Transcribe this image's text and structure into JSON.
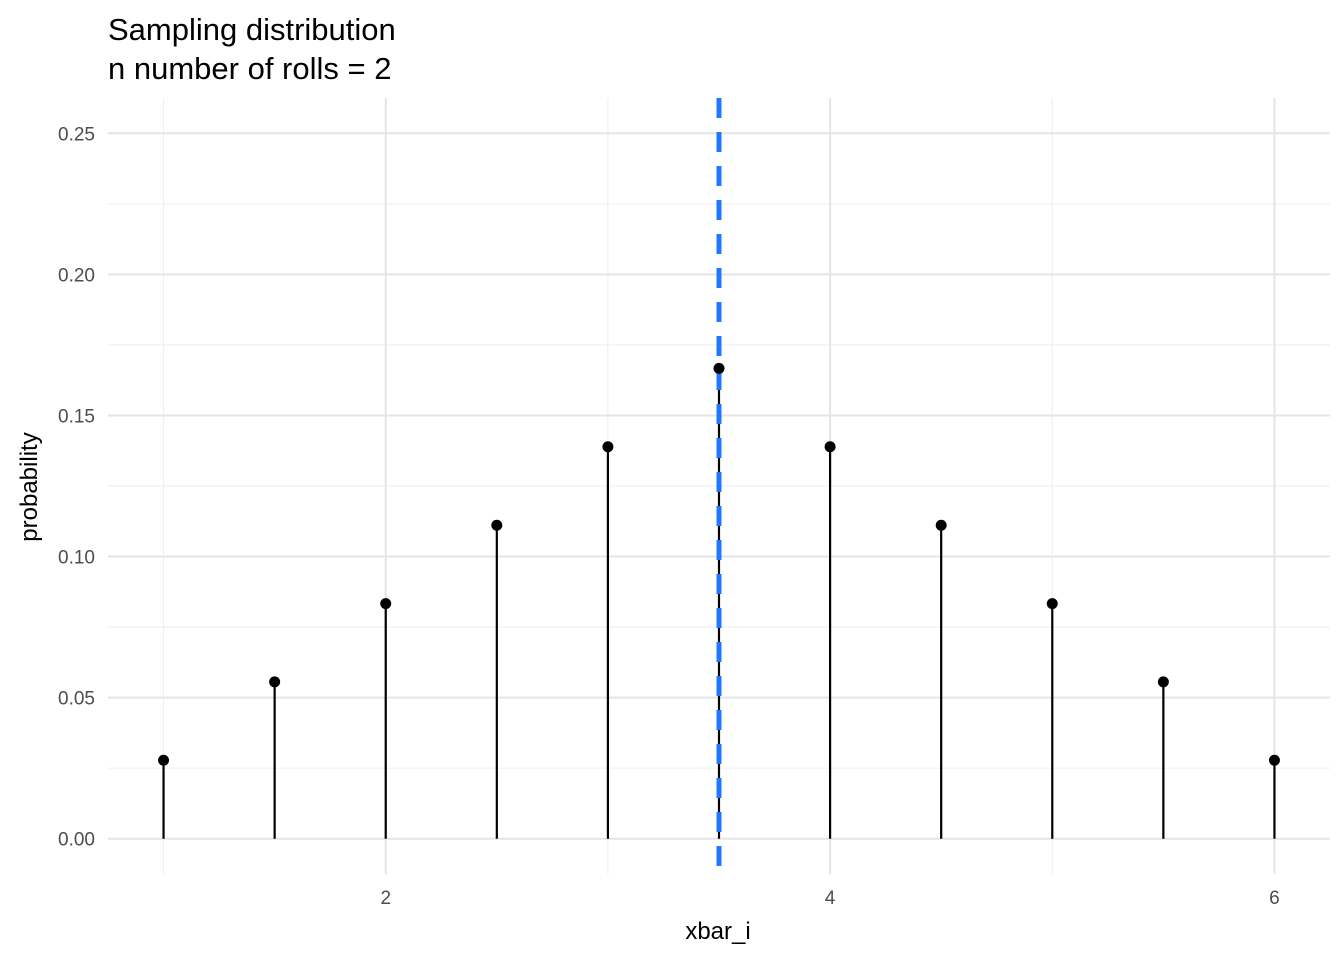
{
  "chart_data": {
    "type": "lollipop",
    "title": "Sampling distribution",
    "subtitle": "n number of rolls = 2",
    "xlabel": "xbar_i",
    "ylabel": "probability",
    "x": [
      1,
      1.5,
      2,
      2.5,
      3,
      3.5,
      4,
      4.5,
      5,
      5.5,
      6
    ],
    "y": [
      0.0278,
      0.0556,
      0.0833,
      0.1111,
      0.1389,
      0.1667,
      0.1389,
      0.1111,
      0.0833,
      0.0556,
      0.0278
    ],
    "xlim": [
      0.75,
      6.25
    ],
    "ylim": [
      -0.0125,
      0.2625
    ],
    "x_ticks": [
      2,
      4,
      6
    ],
    "x_tick_labels": [
      "2",
      "4",
      "6"
    ],
    "y_ticks": [
      0,
      0.05,
      0.1,
      0.15,
      0.2,
      0.25
    ],
    "y_tick_labels": [
      "0.00",
      "0.05",
      "0.10",
      "0.15",
      "0.20",
      "0.25"
    ],
    "mean_line": {
      "x": 3.5,
      "style": "dashed",
      "color": "#1f78ff"
    },
    "point_color": "#000000",
    "grid": true,
    "legend": "none"
  }
}
